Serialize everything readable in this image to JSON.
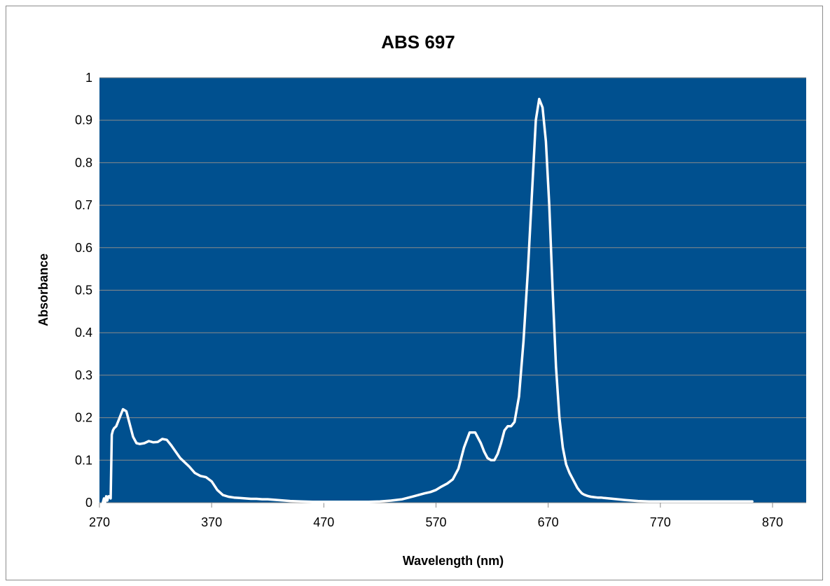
{
  "chart_data": {
    "type": "line",
    "title": "ABS 697",
    "xlabel": "Wavelength (nm)",
    "ylabel": "Absorbance",
    "xlim": [
      270,
      900
    ],
    "ylim": [
      0,
      1
    ],
    "xticks": [
      270,
      370,
      470,
      570,
      670,
      770,
      870
    ],
    "yticks": [
      0,
      0.1,
      0.2,
      0.3,
      0.4,
      0.5,
      0.6,
      0.7,
      0.8,
      0.9,
      1
    ],
    "ytick_labels": [
      "0",
      "0.1",
      "0.2",
      "0.3",
      "0.4",
      "0.5",
      "0.6",
      "0.7",
      "0.8",
      "0.9",
      "1"
    ],
    "grid": true,
    "legend": "none",
    "colors": {
      "plot_background": "#00508f",
      "line": "#ffffff",
      "gridline": "#8a8a8a"
    },
    "series": [
      {
        "x": [
          273,
          274,
          275,
          276,
          277,
          278,
          279,
          280,
          281,
          282,
          283,
          285,
          288,
          291,
          294,
          297,
          300,
          303,
          306,
          310,
          314,
          318,
          322,
          326,
          330,
          334,
          338,
          342,
          346,
          350,
          355,
          360,
          365,
          370,
          375,
          380,
          385,
          390,
          395,
          400,
          405,
          410,
          415,
          420,
          430,
          440,
          450,
          460,
          470,
          480,
          490,
          500,
          510,
          520,
          530,
          540,
          550,
          560,
          565,
          570,
          575,
          580,
          585,
          590,
          595,
          600,
          605,
          610,
          613,
          616,
          619,
          622,
          625,
          628,
          631,
          634,
          637,
          640,
          644,
          648,
          652,
          656,
          659,
          662,
          665,
          668,
          671,
          674,
          677,
          680,
          683,
          686,
          689,
          692,
          694,
          696,
          698,
          700,
          702,
          705,
          708,
          711,
          714,
          717,
          720,
          724,
          728,
          732,
          736,
          740,
          745,
          750,
          760,
          770,
          780,
          790,
          800,
          810,
          820,
          830,
          840,
          852
        ],
        "y": [
          0,
          0.01,
          0,
          0.015,
          0.005,
          0.015,
          0.015,
          0.01,
          0.16,
          0.17,
          0.175,
          0.18,
          0.2,
          0.22,
          0.215,
          0.185,
          0.155,
          0.14,
          0.138,
          0.14,
          0.145,
          0.142,
          0.143,
          0.15,
          0.148,
          0.135,
          0.12,
          0.105,
          0.095,
          0.085,
          0.07,
          0.063,
          0.06,
          0.05,
          0.03,
          0.018,
          0.014,
          0.012,
          0.011,
          0.01,
          0.009,
          0.009,
          0.008,
          0.008,
          0.006,
          0.004,
          0.003,
          0.002,
          0.002,
          0.002,
          0.002,
          0.002,
          0.002,
          0.003,
          0.005,
          0.008,
          0.015,
          0.022,
          0.025,
          0.03,
          0.038,
          0.045,
          0.055,
          0.08,
          0.13,
          0.165,
          0.165,
          0.14,
          0.12,
          0.105,
          0.1,
          0.1,
          0.115,
          0.14,
          0.17,
          0.18,
          0.18,
          0.19,
          0.25,
          0.38,
          0.55,
          0.75,
          0.9,
          0.95,
          0.93,
          0.85,
          0.7,
          0.5,
          0.32,
          0.2,
          0.13,
          0.09,
          0.07,
          0.055,
          0.045,
          0.035,
          0.028,
          0.022,
          0.019,
          0.016,
          0.014,
          0.013,
          0.012,
          0.012,
          0.011,
          0.01,
          0.009,
          0.008,
          0.007,
          0.006,
          0.005,
          0.004,
          0.003,
          0.003,
          0.003,
          0.003,
          0.003,
          0.003,
          0.003,
          0.003,
          0.003,
          0.003
        ]
      }
    ]
  }
}
